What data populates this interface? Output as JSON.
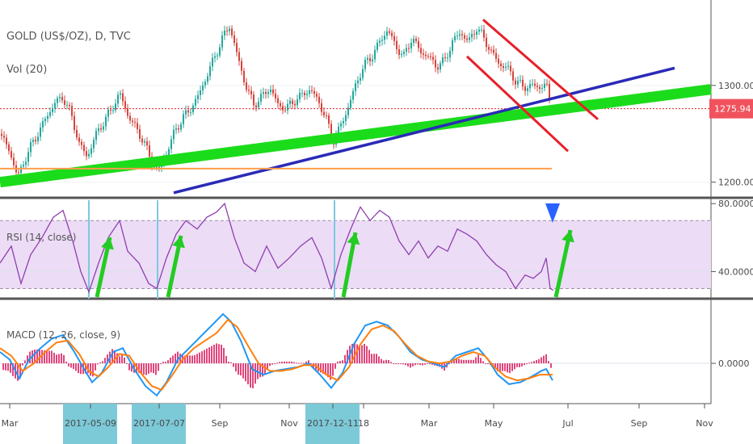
{
  "chart_data": [
    {
      "type": "candlestick",
      "title": "GOLD (US$/OZ), D, TVC",
      "subtitle": "Vol (20)",
      "price_ticks": [
        "1300.00",
        "1200.00"
      ],
      "price_ticks_values": [
        1300,
        1200
      ],
      "ylim": [
        1188,
        1380
      ],
      "last_price_label": "1275.94",
      "last_price": 1275.94,
      "x_ticks": [
        "Mar",
        "2017-05-09",
        "2017-07-07",
        "Sep",
        "Nov",
        "2017-12-11",
        "18",
        "Mar",
        "May",
        "Jul",
        "Sep",
        "Nov"
      ],
      "highlighted_dates": [
        "2017-05-09",
        "2017-07-07",
        "2017-12-11"
      ],
      "close_path": [
        {
          "x": 0,
          "y": 1250
        },
        {
          "x": 12,
          "y": 1232
        },
        {
          "x": 22,
          "y": 1205
        },
        {
          "x": 30,
          "y": 1222
        },
        {
          "x": 40,
          "y": 1240
        },
        {
          "x": 48,
          "y": 1252
        },
        {
          "x": 58,
          "y": 1268
        },
        {
          "x": 68,
          "y": 1282
        },
        {
          "x": 78,
          "y": 1288
        },
        {
          "x": 88,
          "y": 1270
        },
        {
          "x": 98,
          "y": 1240
        },
        {
          "x": 108,
          "y": 1226
        },
        {
          "x": 118,
          "y": 1248
        },
        {
          "x": 128,
          "y": 1262
        },
        {
          "x": 138,
          "y": 1275
        },
        {
          "x": 148,
          "y": 1292
        },
        {
          "x": 158,
          "y": 1270
        },
        {
          "x": 168,
          "y": 1256
        },
        {
          "x": 178,
          "y": 1242
        },
        {
          "x": 188,
          "y": 1220
        },
        {
          "x": 196,
          "y": 1212
        },
        {
          "x": 206,
          "y": 1230
        },
        {
          "x": 216,
          "y": 1252
        },
        {
          "x": 226,
          "y": 1266
        },
        {
          "x": 236,
          "y": 1276
        },
        {
          "x": 246,
          "y": 1290
        },
        {
          "x": 256,
          "y": 1310
        },
        {
          "x": 266,
          "y": 1330
        },
        {
          "x": 276,
          "y": 1350
        },
        {
          "x": 284,
          "y": 1362
        },
        {
          "x": 294,
          "y": 1330
        },
        {
          "x": 304,
          "y": 1300
        },
        {
          "x": 314,
          "y": 1280
        },
        {
          "x": 324,
          "y": 1288
        },
        {
          "x": 334,
          "y": 1298
        },
        {
          "x": 344,
          "y": 1280
        },
        {
          "x": 354,
          "y": 1276
        },
        {
          "x": 364,
          "y": 1284
        },
        {
          "x": 374,
          "y": 1290
        },
        {
          "x": 384,
          "y": 1296
        },
        {
          "x": 394,
          "y": 1284
        },
        {
          "x": 404,
          "y": 1265
        },
        {
          "x": 412,
          "y": 1242
        },
        {
          "x": 420,
          "y": 1255
        },
        {
          "x": 430,
          "y": 1275
        },
        {
          "x": 440,
          "y": 1300
        },
        {
          "x": 450,
          "y": 1320
        },
        {
          "x": 460,
          "y": 1330
        },
        {
          "x": 470,
          "y": 1345
        },
        {
          "x": 480,
          "y": 1358
        },
        {
          "x": 490,
          "y": 1340
        },
        {
          "x": 500,
          "y": 1330
        },
        {
          "x": 510,
          "y": 1350
        },
        {
          "x": 520,
          "y": 1335
        },
        {
          "x": 530,
          "y": 1330
        },
        {
          "x": 540,
          "y": 1320
        },
        {
          "x": 550,
          "y": 1325
        },
        {
          "x": 560,
          "y": 1345
        },
        {
          "x": 570,
          "y": 1355
        },
        {
          "x": 580,
          "y": 1345
        },
        {
          "x": 590,
          "y": 1360
        },
        {
          "x": 598,
          "y": 1350
        },
        {
          "x": 608,
          "y": 1335
        },
        {
          "x": 618,
          "y": 1322
        },
        {
          "x": 628,
          "y": 1318
        },
        {
          "x": 638,
          "y": 1305
        },
        {
          "x": 648,
          "y": 1298
        },
        {
          "x": 658,
          "y": 1300
        },
        {
          "x": 668,
          "y": 1298
        },
        {
          "x": 676,
          "y": 1302
        },
        {
          "x": 682,
          "y": 1276
        }
      ],
      "support_lines": [
        {
          "color": "#1bdc1b",
          "from": {
            "x": 0,
            "y": 1200
          },
          "to": {
            "x": 880,
            "y": 1296
          }
        },
        {
          "color": "#2a2ab8",
          "from": {
            "x": 215,
            "y": 1189
          },
          "to": {
            "x": 835,
            "y": 1318
          }
        },
        {
          "color": "#ff9e4a",
          "from": {
            "x": 0,
            "y": 1214
          },
          "to": {
            "x": 683,
            "y": 1214
          }
        }
      ],
      "channel_lines": [
        {
          "color": "#e8202a",
          "from": {
            "x": 598,
            "y": 1368
          },
          "to": {
            "x": 740,
            "y": 1265
          }
        },
        {
          "color": "#e8202a",
          "from": {
            "x": 578,
            "y": 1330
          },
          "to": {
            "x": 703,
            "y": 1232
          }
        }
      ],
      "colors": {
        "up": "#26a69a",
        "down": "#d4453d",
        "last_price": "#f0535d"
      }
    },
    {
      "type": "line",
      "title": "RSI (14, close)",
      "y_ticks": [
        "80.0000",
        "40.0000"
      ],
      "y_ticks_values": [
        80,
        40
      ],
      "ylim": [
        25,
        82
      ],
      "overbought": 70,
      "oversold": 30,
      "series": [
        {
          "color": "#8e3fae",
          "points": [
            {
              "x": 0,
              "y": 45
            },
            {
              "x": 14,
              "y": 55
            },
            {
              "x": 26,
              "y": 33
            },
            {
              "x": 38,
              "y": 50
            },
            {
              "x": 52,
              "y": 60
            },
            {
              "x": 66,
              "y": 72
            },
            {
              "x": 78,
              "y": 76
            },
            {
              "x": 90,
              "y": 58
            },
            {
              "x": 100,
              "y": 40
            },
            {
              "x": 110,
              "y": 28
            },
            {
              "x": 122,
              "y": 45
            },
            {
              "x": 134,
              "y": 60
            },
            {
              "x": 148,
              "y": 70
            },
            {
              "x": 158,
              "y": 52
            },
            {
              "x": 172,
              "y": 45
            },
            {
              "x": 184,
              "y": 33
            },
            {
              "x": 194,
              "y": 30
            },
            {
              "x": 206,
              "y": 48
            },
            {
              "x": 218,
              "y": 62
            },
            {
              "x": 230,
              "y": 70
            },
            {
              "x": 244,
              "y": 65
            },
            {
              "x": 256,
              "y": 72
            },
            {
              "x": 268,
              "y": 75
            },
            {
              "x": 278,
              "y": 80
            },
            {
              "x": 290,
              "y": 60
            },
            {
              "x": 302,
              "y": 45
            },
            {
              "x": 316,
              "y": 40
            },
            {
              "x": 330,
              "y": 55
            },
            {
              "x": 344,
              "y": 42
            },
            {
              "x": 358,
              "y": 48
            },
            {
              "x": 372,
              "y": 55
            },
            {
              "x": 386,
              "y": 60
            },
            {
              "x": 398,
              "y": 48
            },
            {
              "x": 410,
              "y": 30
            },
            {
              "x": 422,
              "y": 50
            },
            {
              "x": 434,
              "y": 65
            },
            {
              "x": 446,
              "y": 78
            },
            {
              "x": 458,
              "y": 70
            },
            {
              "x": 470,
              "y": 76
            },
            {
              "x": 482,
              "y": 72
            },
            {
              "x": 494,
              "y": 58
            },
            {
              "x": 506,
              "y": 50
            },
            {
              "x": 518,
              "y": 58
            },
            {
              "x": 530,
              "y": 48
            },
            {
              "x": 542,
              "y": 55
            },
            {
              "x": 554,
              "y": 52
            },
            {
              "x": 566,
              "y": 65
            },
            {
              "x": 578,
              "y": 62
            },
            {
              "x": 590,
              "y": 58
            },
            {
              "x": 602,
              "y": 50
            },
            {
              "x": 614,
              "y": 44
            },
            {
              "x": 626,
              "y": 40
            },
            {
              "x": 638,
              "y": 30
            },
            {
              "x": 650,
              "y": 38
            },
            {
              "x": 660,
              "y": 36
            },
            {
              "x": 670,
              "y": 40
            },
            {
              "x": 676,
              "y": 48
            },
            {
              "x": 681,
              "y": 30
            },
            {
              "x": 685,
              "y": 29
            }
          ]
        }
      ],
      "colors": {
        "band": "#ecdcf6",
        "levels": "#9d8ea6"
      }
    },
    {
      "type": "line",
      "title": "MACD (12, 26, close, 9)",
      "y_ticks": [
        "0.0000"
      ],
      "y_ticks_values": [
        0
      ],
      "ylim": [
        -20,
        32
      ],
      "series": [
        {
          "color": "#2196f3",
          "points": [
            {
              "x": 0,
              "y": 6
            },
            {
              "x": 12,
              "y": 2
            },
            {
              "x": 24,
              "y": -8
            },
            {
              "x": 36,
              "y": 2
            },
            {
              "x": 50,
              "y": 8
            },
            {
              "x": 64,
              "y": 13
            },
            {
              "x": 78,
              "y": 15
            },
            {
              "x": 92,
              "y": 6
            },
            {
              "x": 104,
              "y": -3
            },
            {
              "x": 114,
              "y": -10
            },
            {
              "x": 126,
              "y": -5
            },
            {
              "x": 140,
              "y": 6
            },
            {
              "x": 152,
              "y": 8
            },
            {
              "x": 166,
              "y": -3
            },
            {
              "x": 180,
              "y": -12
            },
            {
              "x": 194,
              "y": -17
            },
            {
              "x": 206,
              "y": -10
            },
            {
              "x": 220,
              "y": 2
            },
            {
              "x": 234,
              "y": 8
            },
            {
              "x": 248,
              "y": 14
            },
            {
              "x": 262,
              "y": 20
            },
            {
              "x": 276,
              "y": 26
            },
            {
              "x": 286,
              "y": 22
            },
            {
              "x": 298,
              "y": 12
            },
            {
              "x": 312,
              "y": -3
            },
            {
              "x": 326,
              "y": -6
            },
            {
              "x": 340,
              "y": -4
            },
            {
              "x": 354,
              "y": -3
            },
            {
              "x": 368,
              "y": -2
            },
            {
              "x": 382,
              "y": 0
            },
            {
              "x": 396,
              "y": -6
            },
            {
              "x": 410,
              "y": -13
            },
            {
              "x": 424,
              "y": -5
            },
            {
              "x": 438,
              "y": 10
            },
            {
              "x": 452,
              "y": 20
            },
            {
              "x": 466,
              "y": 22
            },
            {
              "x": 480,
              "y": 20
            },
            {
              "x": 494,
              "y": 14
            },
            {
              "x": 508,
              "y": 6
            },
            {
              "x": 522,
              "y": 2
            },
            {
              "x": 536,
              "y": 0
            },
            {
              "x": 550,
              "y": -2
            },
            {
              "x": 564,
              "y": 4
            },
            {
              "x": 578,
              "y": 6
            },
            {
              "x": 592,
              "y": 8
            },
            {
              "x": 604,
              "y": 2
            },
            {
              "x": 616,
              "y": -6
            },
            {
              "x": 630,
              "y": -11
            },
            {
              "x": 644,
              "y": -10
            },
            {
              "x": 658,
              "y": -7
            },
            {
              "x": 670,
              "y": -4
            },
            {
              "x": 676,
              "y": -3
            },
            {
              "x": 684,
              "y": -9
            }
          ]
        },
        {
          "color": "#ff7f0e",
          "points": [
            {
              "x": 0,
              "y": 8
            },
            {
              "x": 14,
              "y": 4
            },
            {
              "x": 28,
              "y": -4
            },
            {
              "x": 42,
              "y": 0
            },
            {
              "x": 56,
              "y": 6
            },
            {
              "x": 70,
              "y": 11
            },
            {
              "x": 84,
              "y": 12
            },
            {
              "x": 98,
              "y": 5
            },
            {
              "x": 110,
              "y": -4
            },
            {
              "x": 122,
              "y": -7
            },
            {
              "x": 134,
              "y": -2
            },
            {
              "x": 148,
              "y": 5
            },
            {
              "x": 160,
              "y": 4
            },
            {
              "x": 174,
              "y": -5
            },
            {
              "x": 188,
              "y": -12
            },
            {
              "x": 200,
              "y": -14
            },
            {
              "x": 212,
              "y": -7
            },
            {
              "x": 226,
              "y": 2
            },
            {
              "x": 240,
              "y": 8
            },
            {
              "x": 254,
              "y": 12
            },
            {
              "x": 268,
              "y": 16
            },
            {
              "x": 282,
              "y": 23
            },
            {
              "x": 294,
              "y": 19
            },
            {
              "x": 306,
              "y": 10
            },
            {
              "x": 320,
              "y": 0
            },
            {
              "x": 334,
              "y": -4
            },
            {
              "x": 348,
              "y": -4
            },
            {
              "x": 362,
              "y": -3
            },
            {
              "x": 376,
              "y": -1
            },
            {
              "x": 390,
              "y": -1
            },
            {
              "x": 404,
              "y": -6
            },
            {
              "x": 418,
              "y": -9
            },
            {
              "x": 432,
              "y": -2
            },
            {
              "x": 446,
              "y": 10
            },
            {
              "x": 460,
              "y": 18
            },
            {
              "x": 474,
              "y": 20
            },
            {
              "x": 488,
              "y": 17
            },
            {
              "x": 502,
              "y": 10
            },
            {
              "x": 516,
              "y": 4
            },
            {
              "x": 530,
              "y": 1
            },
            {
              "x": 544,
              "y": 0
            },
            {
              "x": 558,
              "y": 1
            },
            {
              "x": 572,
              "y": 4
            },
            {
              "x": 586,
              "y": 6
            },
            {
              "x": 600,
              "y": 4
            },
            {
              "x": 612,
              "y": -2
            },
            {
              "x": 626,
              "y": -7
            },
            {
              "x": 640,
              "y": -9
            },
            {
              "x": 654,
              "y": -8
            },
            {
              "x": 668,
              "y": -6
            },
            {
              "x": 684,
              "y": -6
            }
          ]
        }
      ],
      "histogram_color": "#e0457b"
    }
  ]
}
